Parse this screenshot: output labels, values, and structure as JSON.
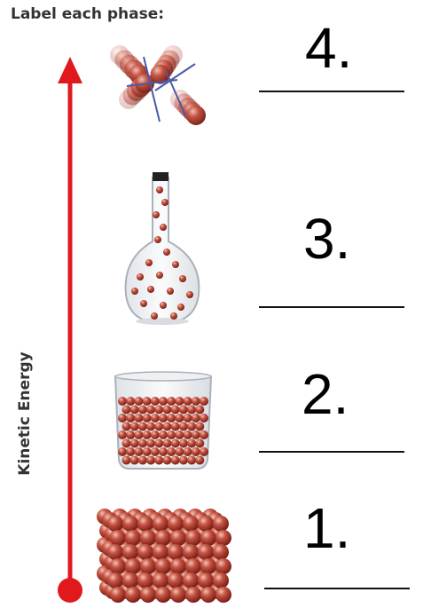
{
  "title": "Label each phase:",
  "axis_label": "Kinetic Energy",
  "phases": [
    {
      "number": "4.",
      "depiction": "gas particles moving freely"
    },
    {
      "number": "3.",
      "depiction": "particles sparsely spread in a flask"
    },
    {
      "number": "2.",
      "depiction": "particles filling bottom of a beaker"
    },
    {
      "number": "1.",
      "depiction": "tightly packed block of particles"
    }
  ],
  "colors": {
    "arrow": "#e0191d",
    "particle": "#b73a2c",
    "text": "#333333"
  }
}
